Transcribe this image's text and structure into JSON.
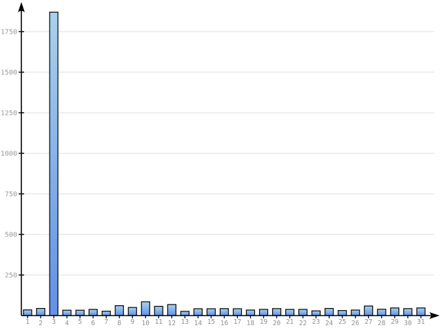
{
  "chart_data": {
    "type": "bar",
    "title": "",
    "xlabel": "",
    "ylabel": "",
    "categories": [
      1,
      2,
      3,
      4,
      5,
      6,
      7,
      8,
      9,
      10,
      11,
      12,
      13,
      14,
      15,
      16,
      17,
      18,
      19,
      20,
      21,
      22,
      23,
      24,
      25,
      26,
      27,
      28,
      29,
      30,
      31
    ],
    "values": [
      35,
      44,
      1870,
      33,
      33,
      38,
      27,
      61,
      50,
      85,
      57,
      68,
      26,
      42,
      42,
      43,
      42,
      34,
      38,
      43,
      38,
      38,
      29,
      44,
      31,
      34,
      59,
      39,
      47,
      43,
      47
    ],
    "yticks": [
      250,
      500,
      750,
      1000,
      1250,
      1500,
      1750
    ],
    "ylim": [
      0,
      1930
    ],
    "grid": true,
    "legend_position": "none",
    "x_axis_arrow": true,
    "y_axis_arrow": true,
    "colors": {
      "background": "#ffffff",
      "bar_top": "#a8d2ec",
      "bar_bottom": "#6190e6",
      "bar_border": "#000000",
      "grid": "#e8e8e8",
      "axis": "#000000",
      "tick_label": "#9a9a9a"
    }
  }
}
